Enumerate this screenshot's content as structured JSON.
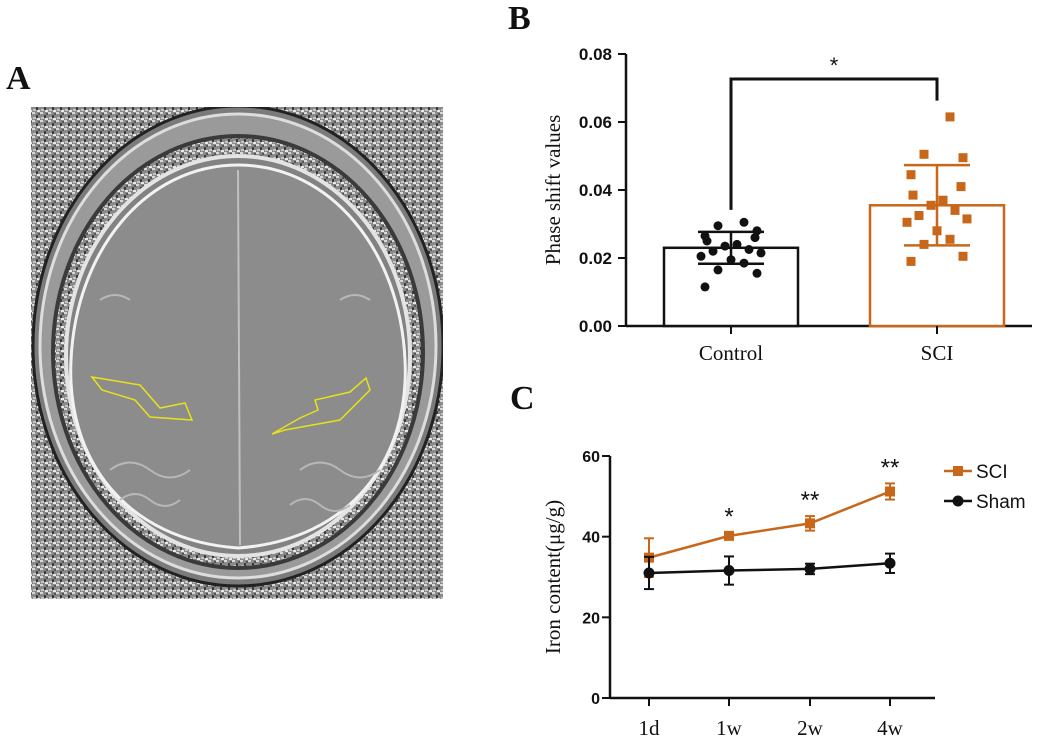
{
  "panels": {
    "a_label": "A",
    "b_label": "B",
    "c_label": "C"
  },
  "mri": {
    "roi_color": "#e6e21a"
  },
  "colors": {
    "control": "#111111",
    "sci": "#c8671a"
  },
  "chart_data": [
    {
      "id": "B",
      "type": "bar",
      "title": "",
      "ylabel": "Phase shift values",
      "xlabel": "",
      "categories": [
        "Control",
        "SCI"
      ],
      "values": [
        0.023,
        0.0355
      ],
      "sd": [
        0.0047,
        0.0118
      ],
      "ylim": [
        0,
        0.08
      ],
      "yticks": [
        "0.00",
        "0.02",
        "0.04",
        "0.06",
        "0.08"
      ],
      "significance": "*",
      "points": [
        [
          0.0115,
          0.0155,
          0.0165,
          0.0185,
          0.0195,
          0.0205,
          0.0215,
          0.022,
          0.0225,
          0.0235,
          0.024,
          0.025,
          0.026,
          0.0265,
          0.028,
          0.0295,
          0.0305
        ],
        [
          0.019,
          0.0205,
          0.024,
          0.0255,
          0.028,
          0.0305,
          0.0315,
          0.0325,
          0.034,
          0.0355,
          0.037,
          0.0385,
          0.041,
          0.0445,
          0.0495,
          0.0505,
          0.0615
        ]
      ]
    },
    {
      "id": "C",
      "type": "line",
      "title": "",
      "ylabel": "Iron content(μg/g)",
      "xlabel": "",
      "categories": [
        "1d",
        "1w",
        "2w",
        "4w"
      ],
      "ylim": [
        0,
        60
      ],
      "yticks": [
        "0",
        "20",
        "40",
        "60"
      ],
      "series": [
        {
          "name": "SCI",
          "values": [
            34.8,
            40.2,
            43.3,
            51.2
          ],
          "err": [
            4.8,
            0.8,
            1.8,
            2.0
          ],
          "marker": "square"
        },
        {
          "name": "Sham",
          "values": [
            31.0,
            31.6,
            32.0,
            33.4
          ],
          "err": [
            4.0,
            3.5,
            1.3,
            2.4
          ],
          "marker": "circle"
        }
      ],
      "annotations": [
        "",
        "*",
        "**",
        "**"
      ]
    }
  ]
}
